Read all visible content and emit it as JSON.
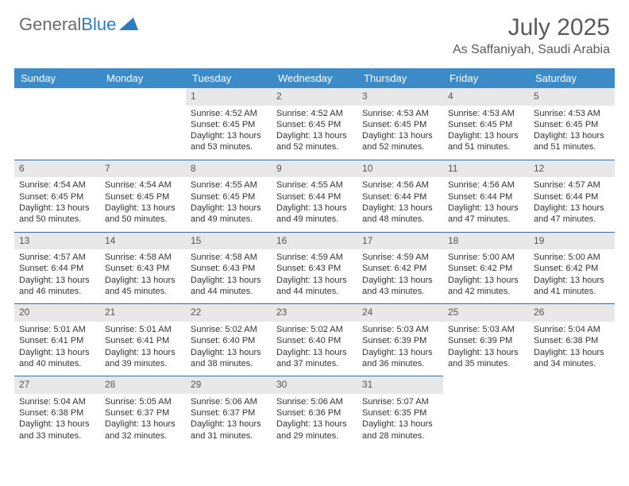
{
  "brand": {
    "part1": "General",
    "part2": "Blue"
  },
  "title": "July 2025",
  "subtitle": "As Saffaniyah, Saudi Arabia",
  "colors": {
    "header_bg": "#3b8bc9",
    "header_text": "#ffffff",
    "daynum_bg": "#e8e8e8",
    "daynum_text": "#555555",
    "row_border": "#2d6fa8",
    "text": "#333333",
    "brand_gray": "#6a6a6a",
    "brand_blue": "#2d7cc0",
    "background": "#ffffff"
  },
  "fonts": {
    "title_size_pt": 22,
    "subtitle_size_pt": 12,
    "header_size_pt": 10,
    "body_size_pt": 8
  },
  "days_of_week": [
    "Sunday",
    "Monday",
    "Tuesday",
    "Wednesday",
    "Thursday",
    "Friday",
    "Saturday"
  ],
  "weeks": [
    [
      null,
      null,
      {
        "n": "1",
        "sr": "4:52 AM",
        "ss": "6:45 PM",
        "dl": "13 hours and 53 minutes."
      },
      {
        "n": "2",
        "sr": "4:52 AM",
        "ss": "6:45 PM",
        "dl": "13 hours and 52 minutes."
      },
      {
        "n": "3",
        "sr": "4:53 AM",
        "ss": "6:45 PM",
        "dl": "13 hours and 52 minutes."
      },
      {
        "n": "4",
        "sr": "4:53 AM",
        "ss": "6:45 PM",
        "dl": "13 hours and 51 minutes."
      },
      {
        "n": "5",
        "sr": "4:53 AM",
        "ss": "6:45 PM",
        "dl": "13 hours and 51 minutes."
      }
    ],
    [
      {
        "n": "6",
        "sr": "4:54 AM",
        "ss": "6:45 PM",
        "dl": "13 hours and 50 minutes."
      },
      {
        "n": "7",
        "sr": "4:54 AM",
        "ss": "6:45 PM",
        "dl": "13 hours and 50 minutes."
      },
      {
        "n": "8",
        "sr": "4:55 AM",
        "ss": "6:45 PM",
        "dl": "13 hours and 49 minutes."
      },
      {
        "n": "9",
        "sr": "4:55 AM",
        "ss": "6:44 PM",
        "dl": "13 hours and 49 minutes."
      },
      {
        "n": "10",
        "sr": "4:56 AM",
        "ss": "6:44 PM",
        "dl": "13 hours and 48 minutes."
      },
      {
        "n": "11",
        "sr": "4:56 AM",
        "ss": "6:44 PM",
        "dl": "13 hours and 47 minutes."
      },
      {
        "n": "12",
        "sr": "4:57 AM",
        "ss": "6:44 PM",
        "dl": "13 hours and 47 minutes."
      }
    ],
    [
      {
        "n": "13",
        "sr": "4:57 AM",
        "ss": "6:44 PM",
        "dl": "13 hours and 46 minutes."
      },
      {
        "n": "14",
        "sr": "4:58 AM",
        "ss": "6:43 PM",
        "dl": "13 hours and 45 minutes."
      },
      {
        "n": "15",
        "sr": "4:58 AM",
        "ss": "6:43 PM",
        "dl": "13 hours and 44 minutes."
      },
      {
        "n": "16",
        "sr": "4:59 AM",
        "ss": "6:43 PM",
        "dl": "13 hours and 44 minutes."
      },
      {
        "n": "17",
        "sr": "4:59 AM",
        "ss": "6:42 PM",
        "dl": "13 hours and 43 minutes."
      },
      {
        "n": "18",
        "sr": "5:00 AM",
        "ss": "6:42 PM",
        "dl": "13 hours and 42 minutes."
      },
      {
        "n": "19",
        "sr": "5:00 AM",
        "ss": "6:42 PM",
        "dl": "13 hours and 41 minutes."
      }
    ],
    [
      {
        "n": "20",
        "sr": "5:01 AM",
        "ss": "6:41 PM",
        "dl": "13 hours and 40 minutes."
      },
      {
        "n": "21",
        "sr": "5:01 AM",
        "ss": "6:41 PM",
        "dl": "13 hours and 39 minutes."
      },
      {
        "n": "22",
        "sr": "5:02 AM",
        "ss": "6:40 PM",
        "dl": "13 hours and 38 minutes."
      },
      {
        "n": "23",
        "sr": "5:02 AM",
        "ss": "6:40 PM",
        "dl": "13 hours and 37 minutes."
      },
      {
        "n": "24",
        "sr": "5:03 AM",
        "ss": "6:39 PM",
        "dl": "13 hours and 36 minutes."
      },
      {
        "n": "25",
        "sr": "5:03 AM",
        "ss": "6:39 PM",
        "dl": "13 hours and 35 minutes."
      },
      {
        "n": "26",
        "sr": "5:04 AM",
        "ss": "6:38 PM",
        "dl": "13 hours and 34 minutes."
      }
    ],
    [
      {
        "n": "27",
        "sr": "5:04 AM",
        "ss": "6:38 PM",
        "dl": "13 hours and 33 minutes."
      },
      {
        "n": "28",
        "sr": "5:05 AM",
        "ss": "6:37 PM",
        "dl": "13 hours and 32 minutes."
      },
      {
        "n": "29",
        "sr": "5:06 AM",
        "ss": "6:37 PM",
        "dl": "13 hours and 31 minutes."
      },
      {
        "n": "30",
        "sr": "5:06 AM",
        "ss": "6:36 PM",
        "dl": "13 hours and 29 minutes."
      },
      {
        "n": "31",
        "sr": "5:07 AM",
        "ss": "6:35 PM",
        "dl": "13 hours and 28 minutes."
      },
      null,
      null
    ]
  ],
  "labels": {
    "sunrise": "Sunrise:",
    "sunset": "Sunset:",
    "daylight": "Daylight:"
  }
}
